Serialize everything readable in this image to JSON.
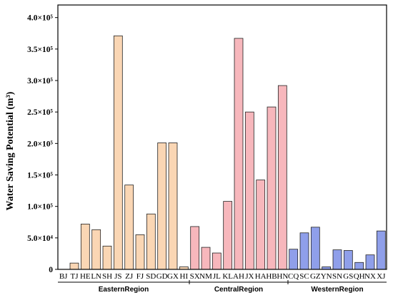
{
  "chart_data": {
    "type": "bar",
    "ylabel": "Water Saving Potential (m³)",
    "ylim": [
      0,
      420000
    ],
    "yticks": [
      {
        "value": 0,
        "label": "0"
      },
      {
        "value": 50000,
        "label": "5.0×10⁴"
      },
      {
        "value": 100000,
        "label": "1.0×10⁵"
      },
      {
        "value": 150000,
        "label": "1.5×10⁵"
      },
      {
        "value": 200000,
        "label": "2.0×10⁵"
      },
      {
        "value": 250000,
        "label": "2.5×10⁵"
      },
      {
        "value": 300000,
        "label": "3.0×10⁵"
      },
      {
        "value": 350000,
        "label": "3.5×10⁵"
      },
      {
        "value": 400000,
        "label": "4.0×10⁵"
      }
    ],
    "categories": [
      "BJ",
      "TJ",
      "HE",
      "LN",
      "SH",
      "JS",
      "ZJ",
      "FJ",
      "SD",
      "GD",
      "GX",
      "HI",
      "SX",
      "NM",
      "JL",
      "KL",
      "AH",
      "JX",
      "HA",
      "HB",
      "HN",
      "CQ",
      "SC",
      "GZ",
      "YN",
      "SN",
      "GS",
      "QH",
      "NX",
      "XJ"
    ],
    "groups": [
      {
        "name": "EasternRegion",
        "start": 0,
        "end": 11,
        "color": "#FAD6B4"
      },
      {
        "name": "CentralRegion",
        "start": 12,
        "end": 20,
        "color": "#F7B7BC"
      },
      {
        "name": "WesternRegion",
        "start": 21,
        "end": 29,
        "color": "#8F9FEA"
      }
    ],
    "values": [
      0,
      10000,
      72000,
      63000,
      37000,
      371000,
      134000,
      55000,
      88000,
      201000,
      201000,
      4000,
      68000,
      35000,
      26000,
      108000,
      367000,
      250000,
      142000,
      258000,
      292000,
      32000,
      58000,
      67000,
      4000,
      31000,
      30000,
      11000,
      23000,
      61000
    ],
    "grid": false
  }
}
